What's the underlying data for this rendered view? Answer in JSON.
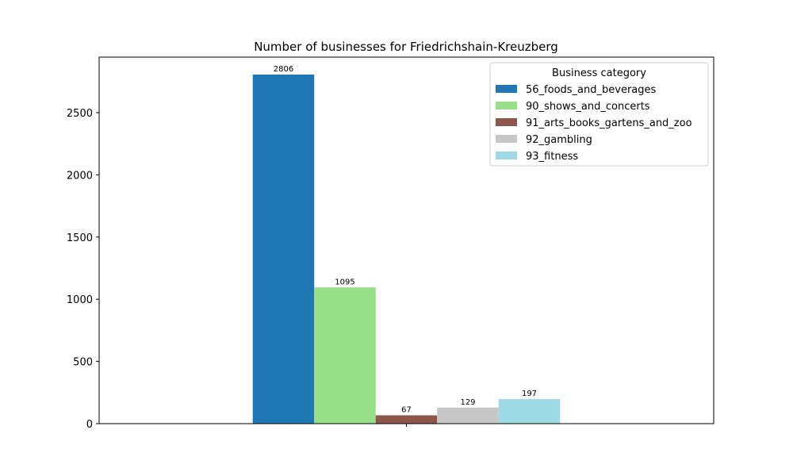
{
  "chart_data": {
    "type": "bar",
    "title": "Number of businesses for Friedrichshain-Kreuzberg",
    "xlabel": "",
    "ylabel": "",
    "categories": [
      ""
    ],
    "ylim": [
      0,
      2946
    ],
    "yticks": [
      0,
      500,
      1000,
      1500,
      2000,
      2500
    ],
    "grid": false,
    "legend": {
      "title": "Business category",
      "placement": "top-right"
    },
    "series": [
      {
        "name": "56_foods_and_beverages",
        "values": [
          2806
        ],
        "color": "#1f77b4"
      },
      {
        "name": "90_shows_and_concerts",
        "values": [
          1095
        ],
        "color": "#98df8a"
      },
      {
        "name": "91_arts_books_gartens_and_zoo",
        "values": [
          67
        ],
        "color": "#8c564b"
      },
      {
        "name": "92_gambling",
        "values": [
          129
        ],
        "color": "#c7c7c7"
      },
      {
        "name": "93_fitness",
        "values": [
          197
        ],
        "color": "#9edae5"
      }
    ]
  }
}
